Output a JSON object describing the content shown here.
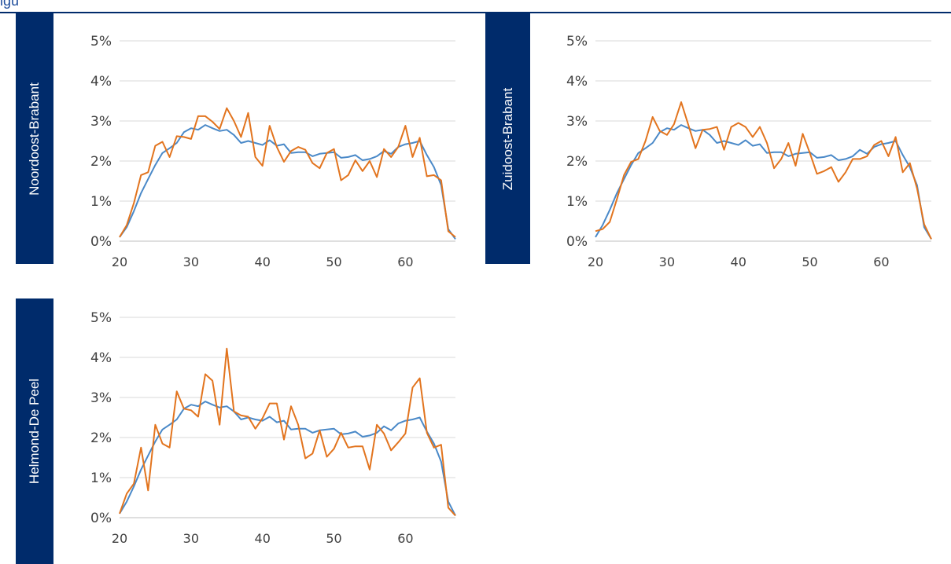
{
  "header": {
    "title": "igu"
  },
  "chart_data": [
    {
      "type": "line",
      "panel_label": "Noordoost-Brabant",
      "x_ticks": [
        20,
        30,
        40,
        50,
        60
      ],
      "y_ticks": [
        "0%",
        "1%",
        "2%",
        "3%",
        "4%",
        "5%"
      ],
      "xlim": [
        20,
        67
      ],
      "ylim": [
        0,
        5
      ],
      "grid": true,
      "x": [
        20,
        21,
        22,
        23,
        24,
        25,
        26,
        27,
        28,
        29,
        30,
        31,
        32,
        33,
        34,
        35,
        36,
        37,
        38,
        39,
        40,
        41,
        42,
        43,
        44,
        45,
        46,
        47,
        48,
        49,
        50,
        51,
        52,
        53,
        54,
        55,
        56,
        57,
        58,
        59,
        60,
        61,
        62,
        63,
        64,
        65,
        66,
        67
      ],
      "series": [
        {
          "color": "#4a89c8",
          "values": [
            0.1,
            0.35,
            0.75,
            1.2,
            1.55,
            1.9,
            2.2,
            2.32,
            2.45,
            2.72,
            2.82,
            2.78,
            2.9,
            2.82,
            2.75,
            2.78,
            2.65,
            2.45,
            2.5,
            2.45,
            2.4,
            2.52,
            2.38,
            2.42,
            2.2,
            2.22,
            2.22,
            2.12,
            2.18,
            2.2,
            2.22,
            2.08,
            2.1,
            2.15,
            2.02,
            2.05,
            2.12,
            2.25,
            2.18,
            2.35,
            2.42,
            2.45,
            2.5,
            2.15,
            1.85,
            1.4,
            0.3,
            0.05
          ]
        },
        {
          "color": "#e2741e",
          "values": [
            0.1,
            0.4,
            0.95,
            1.65,
            1.72,
            2.38,
            2.48,
            2.1,
            2.62,
            2.6,
            2.55,
            3.12,
            3.12,
            2.98,
            2.8,
            3.32,
            3.0,
            2.6,
            3.2,
            2.1,
            1.88,
            2.88,
            2.35,
            1.98,
            2.25,
            2.35,
            2.28,
            1.95,
            1.82,
            2.2,
            2.3,
            1.52,
            1.65,
            2.02,
            1.75,
            2.0,
            1.6,
            2.3,
            2.1,
            2.35,
            2.88,
            2.1,
            2.58,
            1.62,
            1.65,
            1.52,
            0.25,
            0.1
          ]
        }
      ]
    },
    {
      "type": "line",
      "panel_label": "Zuidoost-Brabant",
      "x_ticks": [
        20,
        30,
        40,
        50,
        60
      ],
      "y_ticks": [
        "0%",
        "1%",
        "2%",
        "3%",
        "4%",
        "5%"
      ],
      "xlim": [
        20,
        67
      ],
      "ylim": [
        0,
        5
      ],
      "grid": true,
      "x": [
        20,
        21,
        22,
        23,
        24,
        25,
        26,
        27,
        28,
        29,
        30,
        31,
        32,
        33,
        34,
        35,
        36,
        37,
        38,
        39,
        40,
        41,
        42,
        43,
        44,
        45,
        46,
        47,
        48,
        49,
        50,
        51,
        52,
        53,
        54,
        55,
        56,
        57,
        58,
        59,
        60,
        61,
        62,
        63,
        64,
        65,
        66,
        67
      ],
      "series": [
        {
          "color": "#4a89c8",
          "values": [
            0.1,
            0.4,
            0.78,
            1.2,
            1.55,
            1.9,
            2.2,
            2.32,
            2.45,
            2.72,
            2.82,
            2.78,
            2.9,
            2.82,
            2.75,
            2.78,
            2.65,
            2.45,
            2.5,
            2.45,
            2.4,
            2.52,
            2.38,
            2.42,
            2.2,
            2.22,
            2.22,
            2.12,
            2.18,
            2.2,
            2.22,
            2.08,
            2.1,
            2.15,
            2.02,
            2.05,
            2.12,
            2.28,
            2.18,
            2.35,
            2.42,
            2.45,
            2.5,
            2.15,
            1.85,
            1.4,
            0.35,
            0.05
          ]
        },
        {
          "color": "#e2741e",
          "values": [
            0.25,
            0.3,
            0.48,
            1.05,
            1.65,
            1.98,
            2.05,
            2.5,
            3.1,
            2.75,
            2.65,
            2.92,
            3.47,
            2.9,
            2.32,
            2.78,
            2.8,
            2.85,
            2.28,
            2.85,
            2.95,
            2.85,
            2.6,
            2.85,
            2.45,
            1.82,
            2.05,
            2.45,
            1.88,
            2.68,
            2.2,
            1.68,
            1.75,
            1.85,
            1.48,
            1.72,
            2.05,
            2.05,
            2.12,
            2.4,
            2.5,
            2.12,
            2.6,
            1.72,
            1.95,
            1.32,
            0.42,
            0.05
          ]
        }
      ]
    },
    {
      "type": "line",
      "panel_label": "Helmond-De Peel",
      "x_ticks": [
        20,
        30,
        40,
        50,
        60
      ],
      "y_ticks": [
        "0%",
        "1%",
        "2%",
        "3%",
        "4%",
        "5%"
      ],
      "xlim": [
        20,
        67
      ],
      "ylim": [
        0,
        5
      ],
      "grid": true,
      "x": [
        20,
        21,
        22,
        23,
        24,
        25,
        26,
        27,
        28,
        29,
        30,
        31,
        32,
        33,
        34,
        35,
        36,
        37,
        38,
        39,
        40,
        41,
        42,
        43,
        44,
        45,
        46,
        47,
        48,
        49,
        50,
        51,
        52,
        53,
        54,
        55,
        56,
        57,
        58,
        59,
        60,
        61,
        62,
        63,
        64,
        65,
        66,
        67
      ],
      "series": [
        {
          "color": "#4a89c8",
          "values": [
            0.1,
            0.4,
            0.78,
            1.2,
            1.55,
            1.9,
            2.2,
            2.32,
            2.45,
            2.72,
            2.82,
            2.78,
            2.9,
            2.82,
            2.75,
            2.78,
            2.65,
            2.45,
            2.5,
            2.45,
            2.42,
            2.52,
            2.38,
            2.42,
            2.2,
            2.22,
            2.22,
            2.12,
            2.18,
            2.2,
            2.22,
            2.08,
            2.1,
            2.15,
            2.02,
            2.05,
            2.12,
            2.28,
            2.18,
            2.35,
            2.42,
            2.45,
            2.5,
            2.15,
            1.85,
            1.4,
            0.4,
            0.05
          ]
        },
        {
          "color": "#e2741e",
          "values": [
            0.1,
            0.6,
            0.85,
            1.75,
            0.68,
            2.32,
            1.85,
            1.75,
            3.15,
            2.72,
            2.68,
            2.52,
            3.58,
            3.42,
            2.32,
            4.22,
            2.65,
            2.55,
            2.52,
            2.22,
            2.48,
            2.85,
            2.85,
            1.95,
            2.78,
            2.32,
            1.48,
            1.6,
            2.18,
            1.52,
            1.72,
            2.12,
            1.75,
            1.78,
            1.78,
            1.2,
            2.32,
            2.1,
            1.68,
            1.88,
            2.1,
            3.25,
            3.48,
            2.12,
            1.75,
            1.82,
            0.25,
            0.05
          ]
        }
      ]
    }
  ]
}
